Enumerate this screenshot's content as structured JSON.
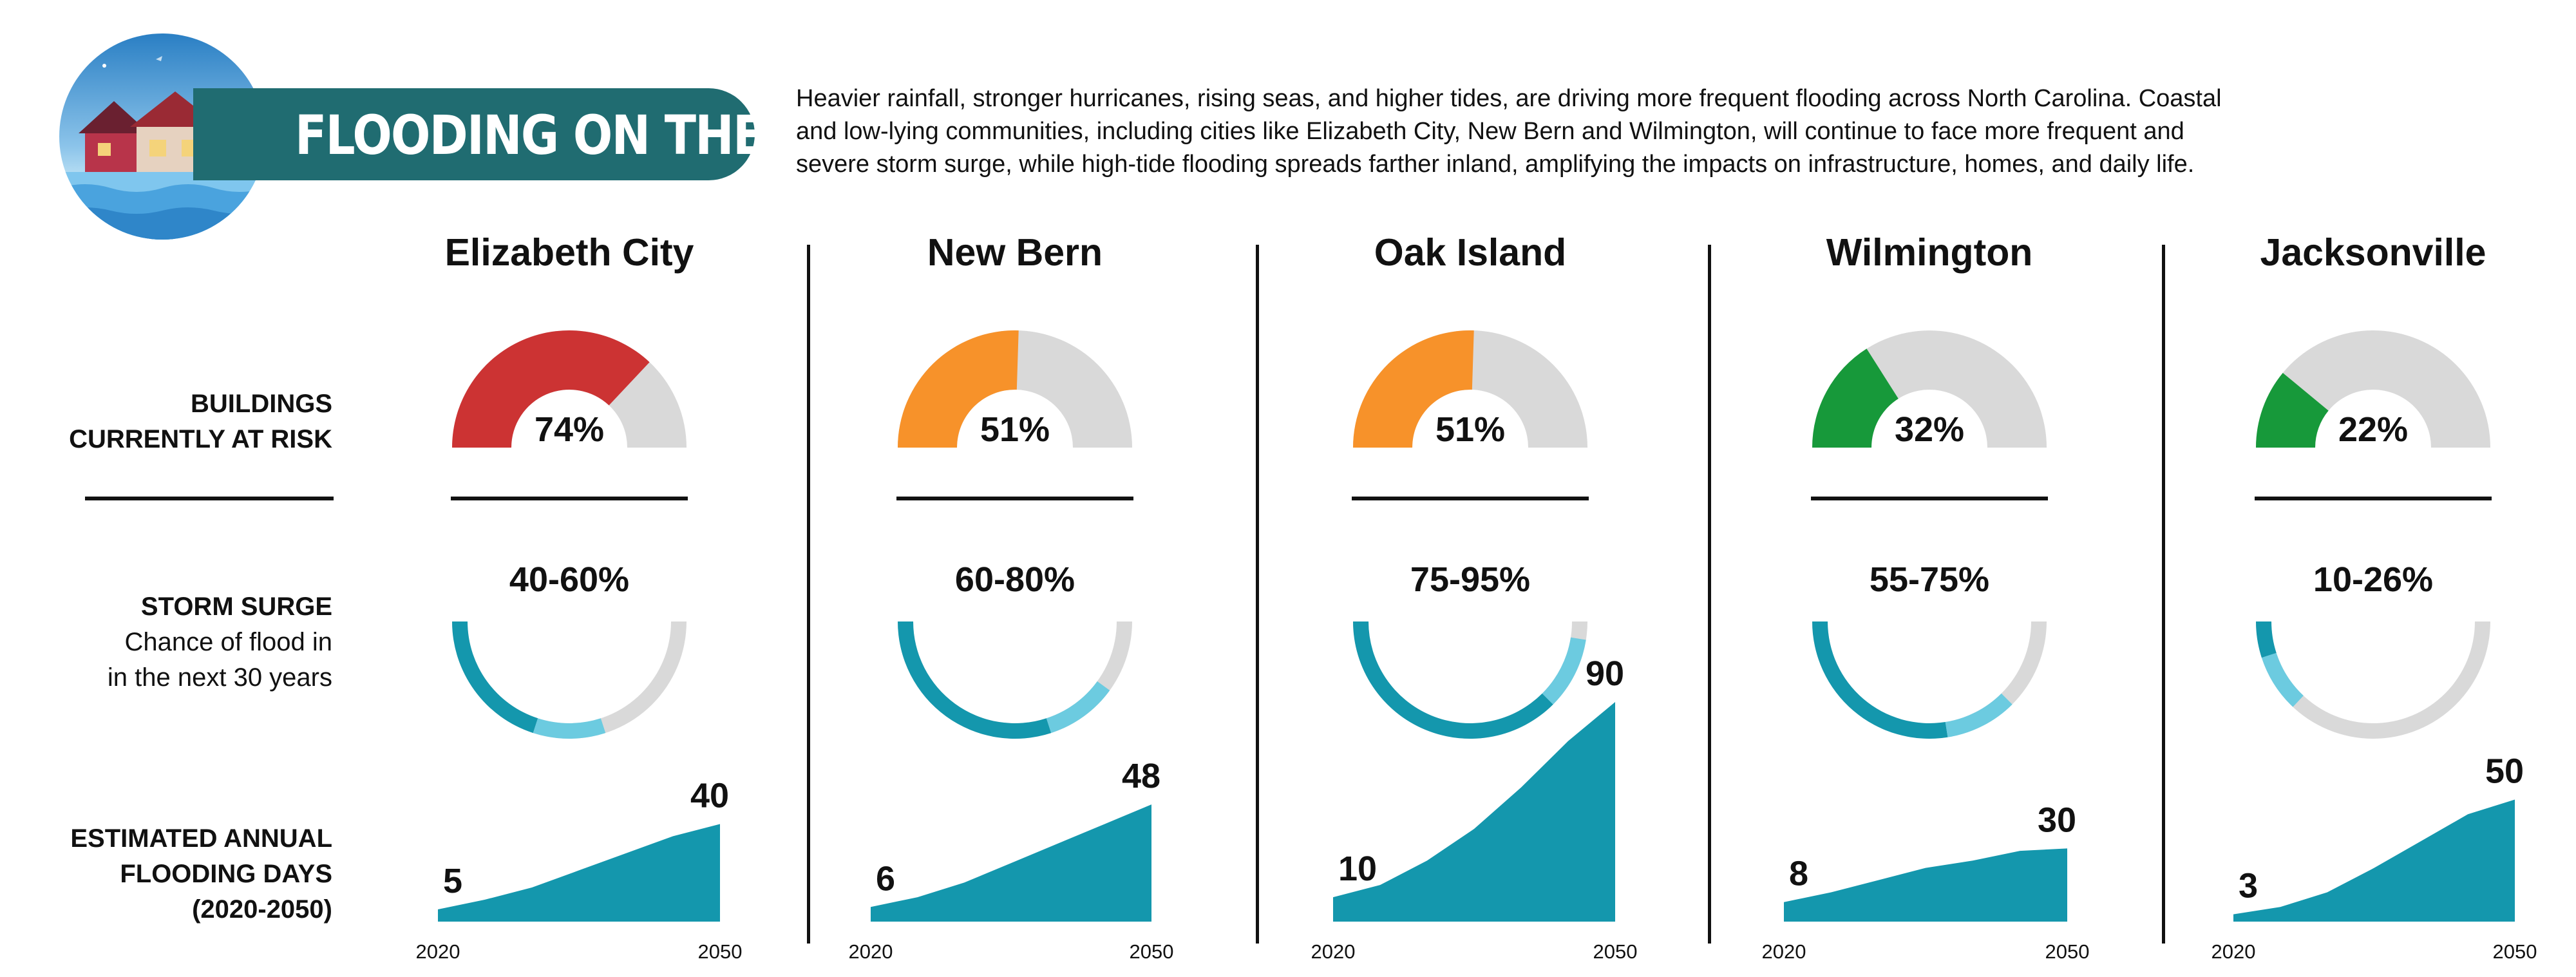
{
  "header": {
    "title": "FLOODING ON THE RISE",
    "intro_lines": [
      "Heavier rainfall, stronger hurricanes, rising seas, and higher tides, are driving more frequent flooding across North Carolina. Coastal",
      "and low-lying communities, including cities like Elizabeth City, New Bern and Wilmington, will continue to face more frequent and",
      "severe storm surge, while high-tide flooding spreads farther inland, amplifying the impacts on infrastructure, homes, and daily life."
    ]
  },
  "row_labels": {
    "buildings": [
      "BUILDINGS",
      "CURRENTLY AT RISK"
    ],
    "storm": [
      "STORM SURGE",
      "Chance of flood in",
      "in the next 30 years"
    ],
    "flooding": [
      "ESTIMATED ANNUAL",
      "FLOODING DAYS",
      "(2020-2050)"
    ]
  },
  "colors": {
    "risk_high": "#cc3333",
    "risk_mid": "#f7922a",
    "risk_low": "#17993a",
    "gauge_track": "#d9d9d9",
    "surge_dark": "#1497ad",
    "surge_light": "#6ccbe0",
    "area": "#1497ad"
  },
  "chart_data": [
    {
      "type": "gauge",
      "title": "BUILDINGS CURRENTLY AT RISK",
      "categories": [
        "Elizabeth City",
        "New Bern",
        "Oak Island",
        "Wilmington",
        "Jacksonville"
      ],
      "labels": [
        "74%",
        "51%",
        "51%",
        "32%",
        "22%"
      ],
      "values": [
        74,
        51,
        51,
        32,
        22
      ],
      "levels": [
        "high",
        "mid",
        "mid",
        "low",
        "low"
      ]
    },
    {
      "type": "range-ring",
      "title": "STORM SURGE",
      "categories": [
        "Elizabeth City",
        "New Bern",
        "Oak Island",
        "Wilmington",
        "Jacksonville"
      ],
      "labels": [
        "40-60%",
        "60-80%",
        "75-95%",
        "55-75%",
        "10-26%"
      ],
      "ranges": [
        [
          40,
          60
        ],
        [
          60,
          80
        ],
        [
          75,
          95
        ],
        [
          55,
          75
        ],
        [
          10,
          26
        ]
      ]
    },
    {
      "type": "area",
      "title": "ESTIMATED ANNUAL FLOODING DAYS (2020-2050)",
      "x": [
        2020,
        2025,
        2030,
        2035,
        2040,
        2045,
        2050
      ],
      "x_labels": [
        "2020",
        "2050"
      ],
      "series": [
        {
          "city": "Elizabeth City",
          "start_label": "5",
          "end_label": "40",
          "values": [
            5,
            9,
            14,
            21,
            28,
            35,
            40
          ]
        },
        {
          "city": "New Bern",
          "start_label": "6",
          "end_label": "48",
          "values": [
            6,
            10,
            16,
            24,
            32,
            40,
            48
          ]
        },
        {
          "city": "Oak Island",
          "start_label": "10",
          "end_label": "90",
          "values": [
            10,
            15,
            25,
            38,
            55,
            74,
            90
          ]
        },
        {
          "city": "Wilmington",
          "start_label": "8",
          "end_label": "30",
          "values": [
            8,
            12,
            17,
            22,
            25,
            29,
            30
          ]
        },
        {
          "city": "Jacksonville",
          "start_label": "3",
          "end_label": "50",
          "values": [
            3,
            6,
            12,
            22,
            33,
            44,
            50
          ]
        }
      ],
      "ylim": [
        0,
        90
      ]
    }
  ]
}
